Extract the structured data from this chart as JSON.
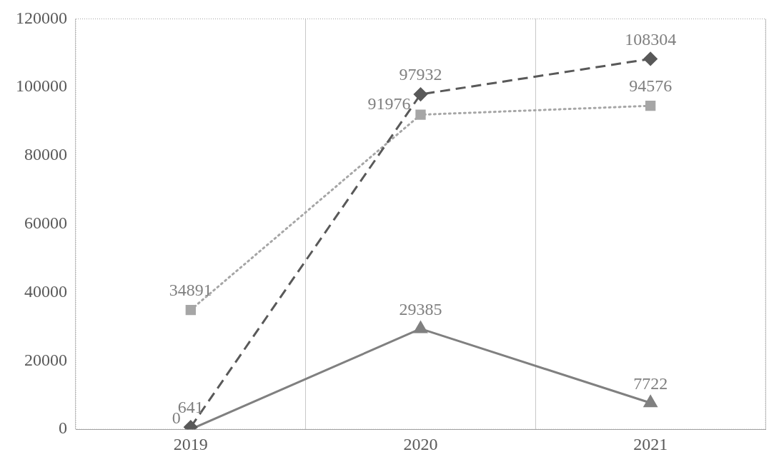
{
  "chart_data": {
    "type": "line",
    "categories": [
      "2019",
      "2020",
      "2021"
    ],
    "series": [
      {
        "color": "#595959",
        "values": [
          641,
          97932,
          108304
        ],
        "marker": "diamond",
        "line_style": "dashed"
      },
      {
        "color": "#a6a6a6",
        "values": [
          34891,
          91976,
          94576
        ],
        "marker": "square",
        "line_style": "dotted"
      },
      {
        "color": "#808080",
        "values": [
          0,
          29385,
          7722
        ],
        "marker": "triangle",
        "line_style": "solid"
      }
    ],
    "ylim": [
      0,
      120000
    ],
    "yticks": [
      0,
      20000,
      40000,
      60000,
      80000,
      100000,
      120000
    ],
    "grid": "x",
    "legend": false,
    "data_labels": true
  }
}
